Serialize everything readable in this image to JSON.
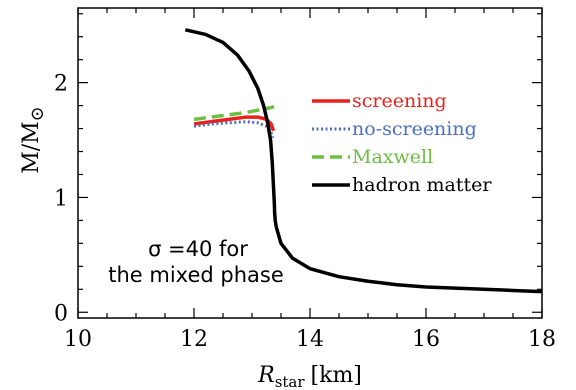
{
  "chart_data": {
    "type": "line",
    "xlabel_main": "R",
    "xlabel_sub": "star",
    "xlabel_unit": "[km]",
    "ylabel_main": "M/M",
    "ylabel_sub": "⊙",
    "xlim": [
      10,
      18
    ],
    "ylim": [
      -0.05,
      2.65
    ],
    "xticks": [
      10,
      12,
      14,
      16,
      18
    ],
    "yticks": [
      0,
      1,
      2
    ],
    "xtick_labels": [
      "10",
      "12",
      "14",
      "16",
      "18"
    ],
    "ytick_labels": [
      "0",
      "1",
      "2"
    ],
    "grid": false,
    "legend_placement": "right",
    "annotation": [
      "σ =40 for",
      "the mixed phase"
    ],
    "series": [
      {
        "name": "screening",
        "color": "#e8211d",
        "dash": "solid",
        "x": [
          12.0,
          12.3,
          12.6,
          12.9,
          13.1,
          13.25,
          13.33,
          13.37
        ],
        "y": [
          1.64,
          1.66,
          1.68,
          1.7,
          1.7,
          1.68,
          1.64,
          1.58
        ]
      },
      {
        "name": "no-screening",
        "color": "#4b6fc0",
        "dash": "dotted",
        "x": [
          12.0,
          12.3,
          12.6,
          12.9,
          13.1,
          13.25,
          13.32,
          13.36
        ],
        "y": [
          1.62,
          1.64,
          1.65,
          1.66,
          1.65,
          1.62,
          1.58,
          1.52
        ]
      },
      {
        "name": "Maxwell",
        "color": "#6fbe44",
        "dash": "dashed",
        "x": [
          12.0,
          12.3,
          12.6,
          12.9,
          13.1,
          13.3,
          13.38
        ],
        "y": [
          1.68,
          1.7,
          1.72,
          1.74,
          1.76,
          1.78,
          1.79
        ]
      },
      {
        "name": "hadron matter",
        "color": "#000000",
        "dash": "solid",
        "x": [
          11.85,
          12.2,
          12.5,
          12.75,
          12.95,
          13.1,
          13.2,
          13.27,
          13.32,
          13.35,
          13.37,
          13.385,
          13.39,
          13.4,
          13.42,
          13.5,
          13.7,
          14.0,
          14.5,
          15.0,
          15.5,
          16.0,
          16.5,
          17.0,
          17.5,
          18.0
        ],
        "y": [
          2.46,
          2.42,
          2.35,
          2.24,
          2.1,
          1.95,
          1.8,
          1.65,
          1.5,
          1.3,
          1.1,
          0.95,
          0.87,
          0.8,
          0.74,
          0.6,
          0.47,
          0.38,
          0.31,
          0.27,
          0.24,
          0.22,
          0.21,
          0.2,
          0.19,
          0.18
        ]
      }
    ]
  }
}
